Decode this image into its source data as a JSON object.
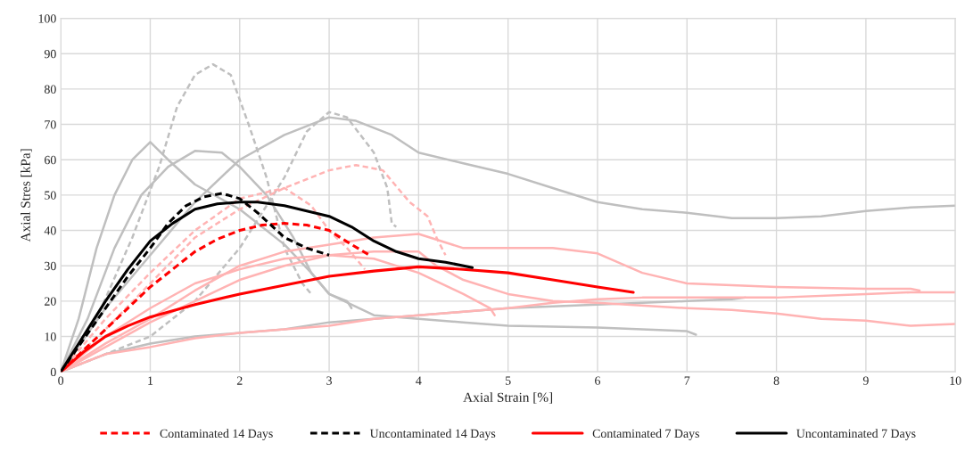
{
  "chart_data": {
    "type": "line",
    "xlabel": "Axial Strain [%]",
    "ylabel": "Axial Stres [kPa]",
    "xlim": [
      0,
      10
    ],
    "ylim": [
      0,
      100
    ],
    "xticks": [
      0,
      1,
      2,
      3,
      4,
      5,
      6,
      7,
      8,
      9,
      10
    ],
    "yticks": [
      0,
      10,
      20,
      30,
      40,
      50,
      60,
      70,
      80,
      90,
      100
    ],
    "grid": true,
    "legend": "bottom",
    "marker": "none",
    "series": [
      {
        "color": "#bfbfbf",
        "line_style": "solid",
        "x": [
          0,
          0.2,
          0.4,
          0.6,
          0.8,
          1,
          1.2,
          1.5,
          2,
          2.5,
          2.8,
          3,
          3.2,
          3.25
        ],
        "values": [
          0,
          15,
          35,
          50,
          60,
          65,
          60,
          53,
          46,
          36,
          28,
          22,
          20,
          18
        ]
      },
      {
        "color": "#bfbfbf",
        "line_style": "solid",
        "x": [
          0,
          0.3,
          0.6,
          0.9,
          1.2,
          1.5,
          1.8,
          2,
          2.3,
          2.6,
          2.8,
          3,
          3.5,
          4,
          4.5,
          5,
          6,
          7,
          7.1
        ],
        "values": [
          0,
          15,
          35,
          50,
          58,
          62.5,
          62,
          58,
          50,
          38,
          28,
          22,
          16,
          15,
          14,
          13,
          12.5,
          11.5,
          10.5
        ]
      },
      {
        "color": "#bfbfbf",
        "line_style": "solid",
        "x": [
          0,
          0.5,
          1,
          1.5,
          2,
          2.5,
          3,
          3.3,
          3.7,
          4,
          4.5,
          5,
          5.5,
          6,
          6.5,
          7,
          7.5,
          8,
          8.5,
          9,
          9.5,
          10
        ],
        "values": [
          0,
          18,
          33,
          48,
          60,
          67,
          72,
          71,
          67,
          62,
          59,
          56,
          52,
          48,
          46,
          45,
          43.5,
          43.5,
          44,
          45.5,
          46.5,
          47
        ]
      },
      {
        "color": "#bfbfbf",
        "line_style": "dashed",
        "x": [
          0,
          0.4,
          0.8,
          1.1,
          1.3,
          1.5,
          1.7,
          1.9,
          2.1,
          2.3,
          2.5,
          2.7,
          2.8
        ],
        "values": [
          0,
          15,
          38,
          58,
          75,
          84,
          87,
          84,
          70,
          55,
          35,
          25,
          22
        ]
      },
      {
        "color": "#bfbfbf",
        "line_style": "dashed",
        "x": [
          0,
          0.5,
          1,
          1.5,
          2,
          2.5,
          2.75,
          3,
          3.2,
          3.5,
          3.65,
          3.7,
          3.75
        ],
        "values": [
          0,
          5,
          10,
          20,
          35,
          55,
          68,
          73.5,
          72,
          62,
          52,
          42,
          41
        ]
      },
      {
        "color": "#bfbfbf",
        "line_style": "solid",
        "x": [
          0,
          0.5,
          1,
          1.5,
          2,
          2.5,
          3,
          3.5,
          4,
          4.5,
          5,
          5.5,
          6,
          6.5,
          7,
          7.5,
          7.65
        ],
        "values": [
          0,
          5,
          8,
          10,
          11,
          12,
          14,
          15,
          16,
          17,
          18,
          18.5,
          19,
          19.5,
          20,
          20.5,
          21
        ]
      },
      {
        "color": "#ffb3b3",
        "line_style": "dashed",
        "x": [
          0,
          0.5,
          1,
          1.5,
          2,
          2.5,
          3,
          3.3,
          3.6,
          3.9,
          4.1,
          4.2,
          4.3
        ],
        "values": [
          0,
          12,
          25,
          38,
          46,
          52,
          57,
          58.5,
          57,
          48,
          44,
          38,
          33
        ]
      },
      {
        "color": "#ffb3b3",
        "line_style": "dashed",
        "x": [
          0,
          0.5,
          1,
          1.5,
          2,
          2.5,
          2.8,
          3,
          3.2,
          3.4
        ],
        "values": [
          0,
          15,
          28,
          40,
          49,
          52,
          47,
          40,
          35,
          29
        ]
      },
      {
        "color": "#ffb3b3",
        "line_style": "solid",
        "x": [
          0,
          0.5,
          1,
          1.5,
          2,
          2.5,
          3,
          3.5,
          4,
          4.5,
          5,
          5.5,
          6,
          6.5,
          7,
          7.5,
          8,
          9,
          9.5,
          9.6
        ],
        "values": [
          0,
          8,
          15,
          23,
          30,
          34,
          36,
          38,
          39,
          35,
          35,
          35,
          33.5,
          28,
          25,
          24.5,
          24,
          23.5,
          23.5,
          23
        ]
      },
      {
        "color": "#ffb3b3",
        "line_style": "solid",
        "x": [
          0,
          0.5,
          1,
          1.5,
          2,
          2.5,
          3,
          3.5,
          4,
          4.2,
          4.5,
          5,
          5.5,
          6,
          7,
          7.5,
          8,
          8.5,
          9,
          9.5,
          10
        ],
        "values": [
          0,
          7,
          14,
          20,
          26,
          30,
          33,
          34,
          34,
          30,
          26,
          22,
          20,
          19.5,
          18,
          17.5,
          16.5,
          15,
          14.5,
          13,
          13.5
        ]
      },
      {
        "color": "#ffb3b3",
        "line_style": "solid",
        "x": [
          0,
          0.5,
          1,
          1.5,
          2,
          2.5,
          3,
          3.5,
          4,
          4.5,
          5,
          5.5,
          6,
          6.5,
          7,
          8,
          9,
          9.5,
          10
        ],
        "values": [
          0,
          5,
          7,
          9.5,
          11,
          12,
          13,
          15,
          16,
          17,
          18,
          19.5,
          20.5,
          21,
          21,
          21,
          22,
          22.5,
          22.5
        ]
      },
      {
        "color": "#ffb3b3",
        "line_style": "solid",
        "x": [
          0,
          0.5,
          1,
          1.5,
          2,
          2.5,
          3,
          3.5,
          4,
          4.5,
          4.8,
          4.85
        ],
        "values": [
          0,
          10,
          18,
          25,
          29,
          32,
          33,
          32,
          28,
          22,
          18,
          16
        ]
      },
      {
        "name": "Contaminated 14 Days",
        "color": "#ff0000",
        "line_style": "dashed",
        "x": [
          0,
          0.25,
          0.5,
          0.75,
          1,
          1.25,
          1.5,
          1.75,
          2,
          2.25,
          2.5,
          2.75,
          3,
          3.25,
          3.45
        ],
        "values": [
          0,
          6,
          12,
          18,
          24,
          29,
          34,
          37.5,
          40,
          41.5,
          42,
          41.5,
          40,
          36,
          33
        ]
      },
      {
        "name": "Uncontaminated 14 Days",
        "color": "#000000",
        "line_style": "dashed",
        "x": [
          0,
          0.25,
          0.5,
          0.75,
          1,
          1.2,
          1.4,
          1.6,
          1.8,
          2,
          2.2,
          2.5,
          2.75,
          3
        ],
        "values": [
          0,
          9,
          18,
          27,
          35,
          42,
          47,
          49.5,
          50.5,
          49,
          45,
          38,
          35,
          33
        ]
      },
      {
        "name": "Contaminated 7 Days",
        "color": "#ff0000",
        "line_style": "solid",
        "x": [
          0,
          0.25,
          0.5,
          0.75,
          1,
          1.5,
          2,
          2.5,
          3,
          3.5,
          4,
          4.5,
          5,
          5.5,
          6,
          6.4
        ],
        "values": [
          0,
          5.5,
          10,
          13,
          15.5,
          19,
          22,
          24.5,
          27,
          28.5,
          29.7,
          29,
          28,
          26,
          24,
          22.5
        ]
      },
      {
        "name": "Uncontaminated 7 Days",
        "color": "#000000",
        "line_style": "solid",
        "x": [
          0,
          0.25,
          0.5,
          0.75,
          1,
          1.25,
          1.5,
          1.75,
          2,
          2.2,
          2.5,
          3,
          3.25,
          3.5,
          3.75,
          4,
          4.3,
          4.6
        ],
        "values": [
          0,
          10,
          20,
          29,
          37,
          42,
          46,
          47.5,
          48,
          48,
          47,
          44,
          41,
          37,
          34,
          32,
          31,
          29.5
        ]
      }
    ]
  }
}
